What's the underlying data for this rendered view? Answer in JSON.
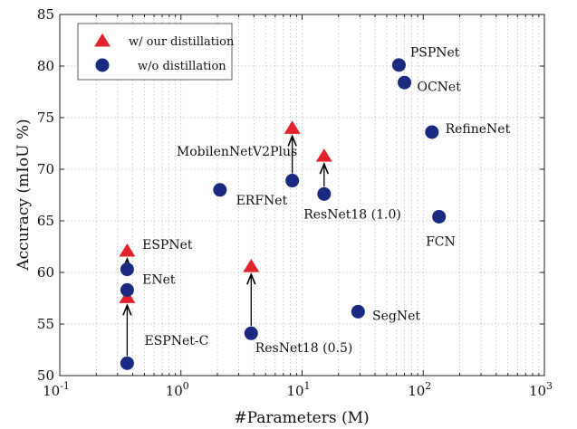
{
  "chart_data": {
    "type": "scatter",
    "xlabel": "#Parameters (M)",
    "ylabel": "Accuracy (mIoU %)",
    "xscale": "log",
    "xlim": [
      0.1,
      1000
    ],
    "ylim": [
      50,
      85
    ],
    "grid": true,
    "legend_position": "top-left",
    "x_ticks": [
      {
        "base": "10",
        "exp": "-1"
      },
      {
        "base": "10",
        "exp": "0"
      },
      {
        "base": "10",
        "exp": "1"
      },
      {
        "base": "10",
        "exp": "2"
      },
      {
        "base": "10",
        "exp": "3"
      }
    ],
    "y_ticks": [
      "50",
      "55",
      "60",
      "65",
      "70",
      "75",
      "80",
      "85"
    ],
    "series": [
      {
        "name": "w/ our distillation",
        "marker": "triangle",
        "color": "#e3232c",
        "points": [
          {
            "x": 8.3,
            "y": 74.0
          },
          {
            "x": 15.2,
            "y": 71.3
          },
          {
            "x": 0.36,
            "y": 62.1
          },
          {
            "x": 3.8,
            "y": 60.6
          },
          {
            "x": 0.36,
            "y": 57.6
          }
        ]
      },
      {
        "name": "w/o distillation",
        "marker": "circle",
        "color": "#1a2a80",
        "points": [
          {
            "x": 63,
            "y": 80.1
          },
          {
            "x": 70,
            "y": 78.4
          },
          {
            "x": 118,
            "y": 73.6
          },
          {
            "x": 8.3,
            "y": 68.9
          },
          {
            "x": 15.2,
            "y": 67.6
          },
          {
            "x": 2.1,
            "y": 68.0
          },
          {
            "x": 135,
            "y": 65.4
          },
          {
            "x": 0.36,
            "y": 60.3
          },
          {
            "x": 0.36,
            "y": 58.3
          },
          {
            "x": 29,
            "y": 56.2
          },
          {
            "x": 3.8,
            "y": 54.1
          },
          {
            "x": 0.36,
            "y": 51.2
          }
        ]
      }
    ],
    "arrows": [
      {
        "x": 8.3,
        "from": 68.9,
        "to": 74.0
      },
      {
        "x": 15.2,
        "from": 67.6,
        "to": 71.3
      },
      {
        "x": 0.36,
        "from": 60.3,
        "to": 62.1
      },
      {
        "x": 3.8,
        "from": 54.1,
        "to": 60.6
      },
      {
        "x": 0.36,
        "from": 51.2,
        "to": 57.6
      }
    ],
    "annotations": [
      {
        "text": "PSPNet",
        "x": 78,
        "y": 80.9
      },
      {
        "text": "OCNet",
        "x": 89,
        "y": 77.6
      },
      {
        "text": "RefineNet",
        "x": 152,
        "y": 73.5
      },
      {
        "text": "MobilenNetV2Plus",
        "x": 0.92,
        "y": 71.3
      },
      {
        "text": "ERFNet",
        "x": 2.85,
        "y": 66.6
      },
      {
        "text": "ResNet18 (1.0)",
        "x": 10.3,
        "y": 65.2
      },
      {
        "text": "FCN",
        "x": 105,
        "y": 62.6
      },
      {
        "text": "ESPNet",
        "x": 0.48,
        "y": 62.3
      },
      {
        "text": "ENet",
        "x": 0.48,
        "y": 58.9
      },
      {
        "text": "SegNet",
        "x": 38,
        "y": 55.4
      },
      {
        "text": "ResNet18 (0.5)",
        "x": 4.1,
        "y": 52.3
      },
      {
        "text": "ESPNet-C",
        "x": 0.5,
        "y": 53.0
      }
    ]
  }
}
